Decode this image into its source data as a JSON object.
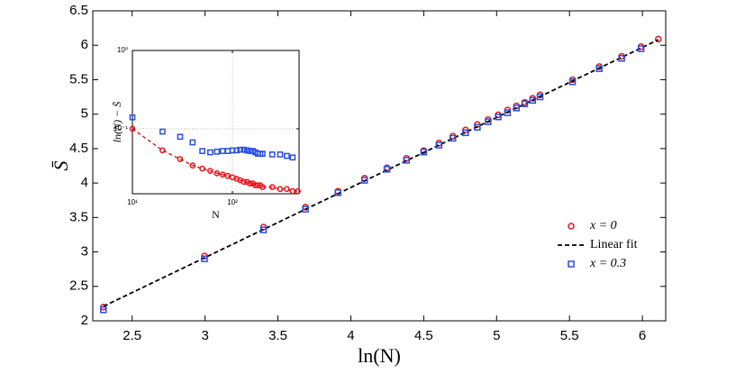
{
  "chart_data": [
    {
      "type": "scatter",
      "xlabel": "ln(N)",
      "ylabel": "S̄",
      "xlim": [
        2.23,
        6.16
      ],
      "ylim": [
        2,
        6.5
      ],
      "xticks": [
        2.5,
        3,
        3.5,
        4,
        4.5,
        5,
        5.5,
        6
      ],
      "yticks": [
        2,
        2.5,
        3,
        3.5,
        4,
        4.5,
        5,
        5.5,
        6,
        6.5
      ],
      "legend": "lower right",
      "series": [
        {
          "name": "x = 0",
          "color": "#e8141c",
          "marker": "circle",
          "x": [
            2.303,
            2.996,
            3.401,
            3.689,
            3.912,
            4.094,
            4.248,
            4.382,
            4.5,
            4.605,
            4.7,
            4.787,
            4.868,
            4.942,
            5.011,
            5.075,
            5.136,
            5.193,
            5.247,
            5.298,
            5.521,
            5.704,
            5.858,
            5.991,
            6.109
          ],
          "values": [
            2.2,
            2.94,
            3.36,
            3.65,
            3.88,
            4.07,
            4.22,
            4.36,
            4.47,
            4.58,
            4.68,
            4.77,
            4.85,
            4.92,
            4.99,
            5.06,
            5.12,
            5.17,
            5.23,
            5.28,
            5.5,
            5.69,
            5.84,
            5.98,
            6.09
          ]
        },
        {
          "name": "Linear fit",
          "color": "#000000",
          "line": "dashed",
          "x": [
            2.303,
            6.109
          ],
          "values": [
            2.21,
            6.08
          ]
        },
        {
          "name": "x = 0.3",
          "color": "#2a4fe0",
          "marker": "square",
          "x": [
            2.303,
            2.996,
            3.401,
            3.689,
            3.912,
            4.094,
            4.248,
            4.382,
            4.5,
            4.605,
            4.7,
            4.787,
            4.868,
            4.942,
            5.011,
            5.075,
            5.136,
            5.193,
            5.247,
            5.298,
            5.521,
            5.704,
            5.858,
            5.991
          ],
          "values": [
            2.16,
            2.9,
            3.32,
            3.62,
            3.86,
            4.04,
            4.2,
            4.33,
            4.45,
            4.55,
            4.65,
            4.73,
            4.81,
            4.89,
            4.96,
            5.02,
            5.09,
            5.15,
            5.2,
            5.25,
            5.47,
            5.66,
            5.81,
            5.95
          ]
        }
      ]
    },
    {
      "type": "scatter",
      "xlabel": "N",
      "ylabel": "ln(N) − S̄",
      "xlog": true,
      "ylog": true,
      "grid": true,
      "xlim": [
        10,
        464
      ],
      "ylim": [
        0.0148,
        1
      ],
      "xticks": [
        {
          "value": 10,
          "label": "10¹"
        },
        {
          "value": 100,
          "label": "10²"
        }
      ],
      "yticks": [
        {
          "value": 0.1,
          "label": "10⁻¹"
        },
        {
          "value": 1,
          "label": "10⁰"
        }
      ],
      "series": [
        {
          "color": "#e8141c",
          "marker": "circle",
          "line": "dashed",
          "x": [
            10,
            20,
            30,
            40,
            50,
            60,
            70,
            80,
            90,
            100,
            110,
            120,
            130,
            140,
            150,
            160,
            170,
            180,
            190,
            200,
            250,
            300,
            350,
            400,
            450
          ],
          "values": [
            0.1,
            0.053,
            0.041,
            0.034,
            0.031,
            0.029,
            0.027,
            0.026,
            0.025,
            0.024,
            0.023,
            0.022,
            0.021,
            0.021,
            0.02,
            0.02,
            0.019,
            0.019,
            0.019,
            0.018,
            0.018,
            0.017,
            0.017,
            0.016,
            0.016
          ]
        },
        {
          "color": "#2a4fe0",
          "marker": "square",
          "x": [
            10,
            20,
            30,
            40,
            50,
            60,
            70,
            80,
            90,
            100,
            110,
            120,
            130,
            140,
            150,
            160,
            170,
            180,
            190,
            200,
            250,
            300,
            350,
            400
          ],
          "values": [
            0.14,
            0.092,
            0.079,
            0.067,
            0.052,
            0.05,
            0.051,
            0.052,
            0.052,
            0.053,
            0.053,
            0.054,
            0.054,
            0.053,
            0.052,
            0.052,
            0.05,
            0.048,
            0.048,
            0.048,
            0.047,
            0.047,
            0.045,
            0.043
          ]
        }
      ]
    }
  ]
}
